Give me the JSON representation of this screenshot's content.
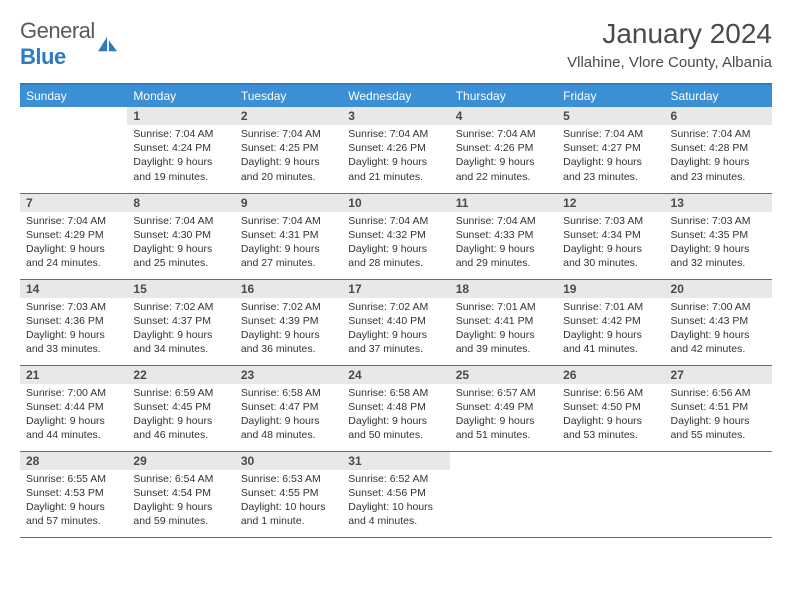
{
  "brand": {
    "text1": "General",
    "text2": "Blue"
  },
  "title": "January 2024",
  "location": "Vllahine, Vlore County, Albania",
  "weekdays": [
    "Sunday",
    "Monday",
    "Tuesday",
    "Wednesday",
    "Thursday",
    "Friday",
    "Saturday"
  ],
  "colors": {
    "header_bg": "#3b8fd4",
    "header_border": "#2f7bbf",
    "daynum_bg": "#e8e8e8",
    "text": "#333333"
  },
  "weeks": [
    [
      {
        "day": "",
        "lines": []
      },
      {
        "day": "1",
        "lines": [
          "Sunrise: 7:04 AM",
          "Sunset: 4:24 PM",
          "Daylight: 9 hours and 19 minutes."
        ]
      },
      {
        "day": "2",
        "lines": [
          "Sunrise: 7:04 AM",
          "Sunset: 4:25 PM",
          "Daylight: 9 hours and 20 minutes."
        ]
      },
      {
        "day": "3",
        "lines": [
          "Sunrise: 7:04 AM",
          "Sunset: 4:26 PM",
          "Daylight: 9 hours and 21 minutes."
        ]
      },
      {
        "day": "4",
        "lines": [
          "Sunrise: 7:04 AM",
          "Sunset: 4:26 PM",
          "Daylight: 9 hours and 22 minutes."
        ]
      },
      {
        "day": "5",
        "lines": [
          "Sunrise: 7:04 AM",
          "Sunset: 4:27 PM",
          "Daylight: 9 hours and 23 minutes."
        ]
      },
      {
        "day": "6",
        "lines": [
          "Sunrise: 7:04 AM",
          "Sunset: 4:28 PM",
          "Daylight: 9 hours and 23 minutes."
        ]
      }
    ],
    [
      {
        "day": "7",
        "lines": [
          "Sunrise: 7:04 AM",
          "Sunset: 4:29 PM",
          "Daylight: 9 hours and 24 minutes."
        ]
      },
      {
        "day": "8",
        "lines": [
          "Sunrise: 7:04 AM",
          "Sunset: 4:30 PM",
          "Daylight: 9 hours and 25 minutes."
        ]
      },
      {
        "day": "9",
        "lines": [
          "Sunrise: 7:04 AM",
          "Sunset: 4:31 PM",
          "Daylight: 9 hours and 27 minutes."
        ]
      },
      {
        "day": "10",
        "lines": [
          "Sunrise: 7:04 AM",
          "Sunset: 4:32 PM",
          "Daylight: 9 hours and 28 minutes."
        ]
      },
      {
        "day": "11",
        "lines": [
          "Sunrise: 7:04 AM",
          "Sunset: 4:33 PM",
          "Daylight: 9 hours and 29 minutes."
        ]
      },
      {
        "day": "12",
        "lines": [
          "Sunrise: 7:03 AM",
          "Sunset: 4:34 PM",
          "Daylight: 9 hours and 30 minutes."
        ]
      },
      {
        "day": "13",
        "lines": [
          "Sunrise: 7:03 AM",
          "Sunset: 4:35 PM",
          "Daylight: 9 hours and 32 minutes."
        ]
      }
    ],
    [
      {
        "day": "14",
        "lines": [
          "Sunrise: 7:03 AM",
          "Sunset: 4:36 PM",
          "Daylight: 9 hours and 33 minutes."
        ]
      },
      {
        "day": "15",
        "lines": [
          "Sunrise: 7:02 AM",
          "Sunset: 4:37 PM",
          "Daylight: 9 hours and 34 minutes."
        ]
      },
      {
        "day": "16",
        "lines": [
          "Sunrise: 7:02 AM",
          "Sunset: 4:39 PM",
          "Daylight: 9 hours and 36 minutes."
        ]
      },
      {
        "day": "17",
        "lines": [
          "Sunrise: 7:02 AM",
          "Sunset: 4:40 PM",
          "Daylight: 9 hours and 37 minutes."
        ]
      },
      {
        "day": "18",
        "lines": [
          "Sunrise: 7:01 AM",
          "Sunset: 4:41 PM",
          "Daylight: 9 hours and 39 minutes."
        ]
      },
      {
        "day": "19",
        "lines": [
          "Sunrise: 7:01 AM",
          "Sunset: 4:42 PM",
          "Daylight: 9 hours and 41 minutes."
        ]
      },
      {
        "day": "20",
        "lines": [
          "Sunrise: 7:00 AM",
          "Sunset: 4:43 PM",
          "Daylight: 9 hours and 42 minutes."
        ]
      }
    ],
    [
      {
        "day": "21",
        "lines": [
          "Sunrise: 7:00 AM",
          "Sunset: 4:44 PM",
          "Daylight: 9 hours and 44 minutes."
        ]
      },
      {
        "day": "22",
        "lines": [
          "Sunrise: 6:59 AM",
          "Sunset: 4:45 PM",
          "Daylight: 9 hours and 46 minutes."
        ]
      },
      {
        "day": "23",
        "lines": [
          "Sunrise: 6:58 AM",
          "Sunset: 4:47 PM",
          "Daylight: 9 hours and 48 minutes."
        ]
      },
      {
        "day": "24",
        "lines": [
          "Sunrise: 6:58 AM",
          "Sunset: 4:48 PM",
          "Daylight: 9 hours and 50 minutes."
        ]
      },
      {
        "day": "25",
        "lines": [
          "Sunrise: 6:57 AM",
          "Sunset: 4:49 PM",
          "Daylight: 9 hours and 51 minutes."
        ]
      },
      {
        "day": "26",
        "lines": [
          "Sunrise: 6:56 AM",
          "Sunset: 4:50 PM",
          "Daylight: 9 hours and 53 minutes."
        ]
      },
      {
        "day": "27",
        "lines": [
          "Sunrise: 6:56 AM",
          "Sunset: 4:51 PM",
          "Daylight: 9 hours and 55 minutes."
        ]
      }
    ],
    [
      {
        "day": "28",
        "lines": [
          "Sunrise: 6:55 AM",
          "Sunset: 4:53 PM",
          "Daylight: 9 hours and 57 minutes."
        ]
      },
      {
        "day": "29",
        "lines": [
          "Sunrise: 6:54 AM",
          "Sunset: 4:54 PM",
          "Daylight: 9 hours and 59 minutes."
        ]
      },
      {
        "day": "30",
        "lines": [
          "Sunrise: 6:53 AM",
          "Sunset: 4:55 PM",
          "Daylight: 10 hours and 1 minute."
        ]
      },
      {
        "day": "31",
        "lines": [
          "Sunrise: 6:52 AM",
          "Sunset: 4:56 PM",
          "Daylight: 10 hours and 4 minutes."
        ]
      },
      {
        "day": "",
        "lines": []
      },
      {
        "day": "",
        "lines": []
      },
      {
        "day": "",
        "lines": []
      }
    ]
  ]
}
